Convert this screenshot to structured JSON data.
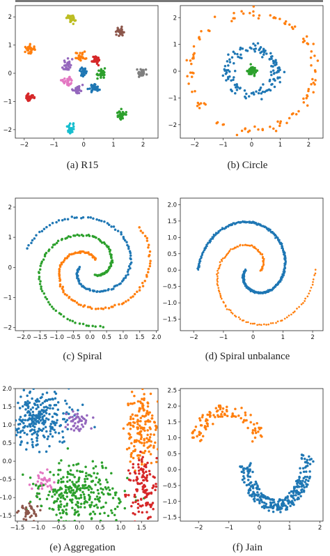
{
  "palette": [
    "#1f77b4",
    "#ff7f0e",
    "#2ca02c",
    "#d62728",
    "#9467bd",
    "#8c564b",
    "#e377c2",
    "#7f7f7f",
    "#bcbd22",
    "#17becf"
  ],
  "captions": [
    "(a) R15",
    "(b) Circle",
    "(c) Spiral",
    "(d) Spiral unbalance",
    "(e) Aggregation",
    "(f) Jain"
  ],
  "chart_data": [
    {
      "type": "scatter",
      "caption": "(a) R15",
      "xlim": [
        -2.3,
        2.5
      ],
      "ylim": [
        -2.3,
        2.4
      ],
      "xticks": [
        -2,
        -1,
        0,
        1,
        2
      ],
      "yticks": [
        -2,
        -1,
        0,
        1,
        2
      ],
      "clusters": [
        {
          "name": "1",
          "color": "#bcbd22",
          "shape": "blob",
          "center": [
            -0.42,
            1.95
          ],
          "spread": [
            0.07,
            0.08
          ],
          "count": 28
        },
        {
          "name": "2",
          "color": "#8c564b",
          "shape": "blob",
          "center": [
            1.22,
            1.48
          ],
          "spread": [
            0.07,
            0.08
          ],
          "count": 28
        },
        {
          "name": "3",
          "color": "#ff7f0e",
          "shape": "blob",
          "center": [
            -1.85,
            0.83
          ],
          "spread": [
            0.08,
            0.09
          ],
          "count": 28
        },
        {
          "name": "4",
          "color": "#ff7f0e",
          "shape": "blob",
          "center": [
            -0.12,
            0.58
          ],
          "spread": [
            0.09,
            0.07
          ],
          "count": 28
        },
        {
          "name": "5",
          "color": "#d62728",
          "shape": "blob",
          "center": [
            0.38,
            0.48
          ],
          "spread": [
            0.08,
            0.08
          ],
          "count": 28
        },
        {
          "name": "6",
          "color": "#9467bd",
          "shape": "blob",
          "center": [
            -0.55,
            0.28
          ],
          "spread": [
            0.06,
            0.09
          ],
          "count": 28
        },
        {
          "name": "7",
          "color": "#1f77b4",
          "shape": "blob",
          "center": [
            0.0,
            0.05
          ],
          "spread": [
            0.08,
            0.09
          ],
          "count": 28
        },
        {
          "name": "8",
          "color": "#2ca02c",
          "shape": "blob",
          "center": [
            0.62,
            0.0
          ],
          "spread": [
            0.09,
            0.08
          ],
          "count": 28
        },
        {
          "name": "9",
          "color": "#7f7f7f",
          "shape": "blob",
          "center": [
            1.95,
            0.0
          ],
          "spread": [
            0.08,
            0.07
          ],
          "count": 28
        },
        {
          "name": "10",
          "color": "#e377c2",
          "shape": "blob",
          "center": [
            -0.55,
            -0.28
          ],
          "spread": [
            0.08,
            0.09
          ],
          "count": 28
        },
        {
          "name": "11",
          "color": "#9467bd",
          "shape": "blob",
          "center": [
            -0.2,
            -0.58
          ],
          "spread": [
            0.08,
            0.07
          ],
          "count": 28
        },
        {
          "name": "12",
          "color": "#1f77b4",
          "shape": "blob",
          "center": [
            0.35,
            -0.5
          ],
          "spread": [
            0.09,
            0.09
          ],
          "count": 28
        },
        {
          "name": "13",
          "color": "#d62728",
          "shape": "blob",
          "center": [
            -1.82,
            -0.85
          ],
          "spread": [
            0.1,
            0.06
          ],
          "count": 28
        },
        {
          "name": "14",
          "color": "#2ca02c",
          "shape": "blob",
          "center": [
            1.25,
            -1.5
          ],
          "spread": [
            0.07,
            0.09
          ],
          "count": 28
        },
        {
          "name": "15",
          "color": "#17becf",
          "shape": "blob",
          "center": [
            -0.45,
            -1.95
          ],
          "spread": [
            0.07,
            0.08
          ],
          "count": 28
        }
      ]
    },
    {
      "type": "scatter",
      "caption": "(b) Circle",
      "xlim": [
        -2.5,
        2.5
      ],
      "ylim": [
        -2.5,
        2.45
      ],
      "xticks": [
        -2,
        -1,
        0,
        1,
        2
      ],
      "yticks": [
        -2,
        -1,
        0,
        1,
        2
      ],
      "clusters": [
        {
          "name": "outer",
          "color": "#ff7f0e",
          "shape": "ring",
          "radius": 2.2,
          "noise": 0.08,
          "count": 110
        },
        {
          "name": "middle",
          "color": "#1f77b4",
          "shape": "ring",
          "radius": 0.85,
          "noise": 0.1,
          "count": 130
        },
        {
          "name": "inner",
          "color": "#2ca02c",
          "shape": "blob",
          "center": [
            0.0,
            0.0
          ],
          "spread": [
            0.07,
            0.07
          ],
          "count": 60
        }
      ]
    },
    {
      "type": "scatter",
      "caption": "(c) Spiral",
      "xlim": [
        -2.25,
        2.05
      ],
      "ylim": [
        -2.1,
        2.3
      ],
      "xticks": [
        -2.0,
        -1.5,
        -1.0,
        -0.5,
        0.0,
        0.5,
        1.0,
        1.5,
        2.0
      ],
      "yticks": [
        -2,
        -1,
        0,
        1,
        2
      ],
      "clusters": [
        {
          "name": "blue",
          "color": "#1f77b4",
          "shape": "spiral",
          "start_angle": 3.1416,
          "turns": 0.95,
          "r0": 0.3,
          "r1": 2.0,
          "count": 110
        },
        {
          "name": "orange",
          "color": "#ff7f0e",
          "shape": "spiral",
          "start_angle": 1.0472,
          "turns": 0.95,
          "r0": 0.3,
          "r1": 2.0,
          "count": 110
        },
        {
          "name": "green",
          "color": "#2ca02c",
          "shape": "spiral",
          "start_angle": 5.236,
          "turns": 0.95,
          "r0": 0.3,
          "r1": 2.0,
          "count": 110
        }
      ]
    },
    {
      "type": "scatter",
      "caption": "(d) Spiral unbalance",
      "xlim": [
        -2.45,
        2.35
      ],
      "ylim": [
        -1.85,
        2.2
      ],
      "xticks": [
        -2,
        -1,
        0,
        1,
        2
      ],
      "yticks": [
        -1.5,
        -1.0,
        -0.5,
        0.0,
        0.5,
        1.0,
        1.5,
        2.0
      ],
      "clusters": [
        {
          "name": "blue",
          "color": "#1f77b4",
          "shape": "spiral",
          "start_angle": 3.1416,
          "turns": 1.0,
          "r0": 0.25,
          "r1": 1.85,
          "count": 700
        },
        {
          "name": "orange",
          "color": "#ff7f0e",
          "shape": "spiral",
          "start_angle": 0.0,
          "turns": 1.0,
          "r0": 0.25,
          "r1": 2.1,
          "count": 140
        }
      ]
    },
    {
      "type": "scatter",
      "caption": "(e) Aggregation",
      "xlim": [
        -1.55,
        1.9
      ],
      "ylim": [
        -1.65,
        2.0
      ],
      "xticks": [
        -1.5,
        -1.0,
        -0.5,
        0.0,
        0.5,
        1.0,
        1.5
      ],
      "yticks": [
        -1.5,
        -1.0,
        -0.5,
        0.0,
        0.5,
        1.0,
        1.5,
        2.0
      ],
      "clusters": [
        {
          "name": "blue",
          "color": "#1f77b4",
          "shape": "blob",
          "center": [
            -1.0,
            1.15
          ],
          "spread": [
            0.35,
            0.4
          ],
          "count": 270
        },
        {
          "name": "purple",
          "color": "#9467bd",
          "shape": "blob",
          "center": [
            0.0,
            1.1
          ],
          "spread": [
            0.15,
            0.13
          ],
          "count": 45
        },
        {
          "name": "orange",
          "color": "#ff7f0e",
          "shape": "blob",
          "center": [
            1.48,
            0.95
          ],
          "spread": [
            0.17,
            0.5
          ],
          "count": 170
        },
        {
          "name": "pink",
          "color": "#e377c2",
          "shape": "blob",
          "center": [
            -0.9,
            -0.55
          ],
          "spread": [
            0.15,
            0.12
          ],
          "count": 35
        },
        {
          "name": "green",
          "color": "#2ca02c",
          "shape": "blob",
          "center": [
            0.0,
            -0.95
          ],
          "spread": [
            0.5,
            0.42
          ],
          "count": 300
        },
        {
          "name": "red",
          "color": "#d62728",
          "shape": "blob",
          "center": [
            1.5,
            -0.75
          ],
          "spread": [
            0.17,
            0.48
          ],
          "count": 130
        },
        {
          "name": "brown",
          "color": "#8c564b",
          "shape": "blob",
          "center": [
            -1.2,
            -1.38
          ],
          "spread": [
            0.12,
            0.12
          ],
          "count": 34
        }
      ]
    },
    {
      "type": "scatter",
      "caption": "(f) Jain",
      "xlim": [
        -2.6,
        2.1
      ],
      "ylim": [
        -1.62,
        2.55
      ],
      "xticks": [
        -2,
        -1,
        0,
        1,
        2
      ],
      "yticks": [
        -1.5,
        -1.0,
        -0.5,
        0.0,
        0.5,
        1.0,
        1.5,
        2.0,
        2.5
      ],
      "clusters": [
        {
          "name": "orange",
          "color": "#ff7f0e",
          "shape": "arc",
          "center": [
            -1.05,
            0.45
          ],
          "rx": 1.1,
          "ry": 1.4,
          "a0": 0.35,
          "a1": 2.8,
          "width": 0.45,
          "count": 100
        },
        {
          "name": "blue",
          "color": "#1f77b4",
          "shape": "arc",
          "center": [
            0.55,
            0.6
          ],
          "rx": 1.05,
          "ry": 1.75,
          "a0": 3.4,
          "a1": 6.2,
          "width": 0.4,
          "count": 270
        }
      ]
    }
  ]
}
